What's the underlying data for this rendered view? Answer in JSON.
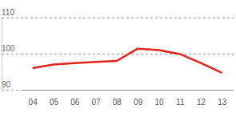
{
  "chart_data": {
    "type": "line",
    "categories": [
      "04",
      "05",
      "06",
      "07",
      "08",
      "09",
      "10",
      "11",
      "12",
      "13"
    ],
    "values": [
      96.0,
      97.0,
      97.4,
      97.7,
      98.0,
      101.4,
      101.0,
      99.9,
      97.4,
      94.7
    ],
    "color": "#e2231a",
    "ylim": [
      90,
      110
    ],
    "yticks": [
      90,
      100,
      110
    ],
    "grid": true
  }
}
